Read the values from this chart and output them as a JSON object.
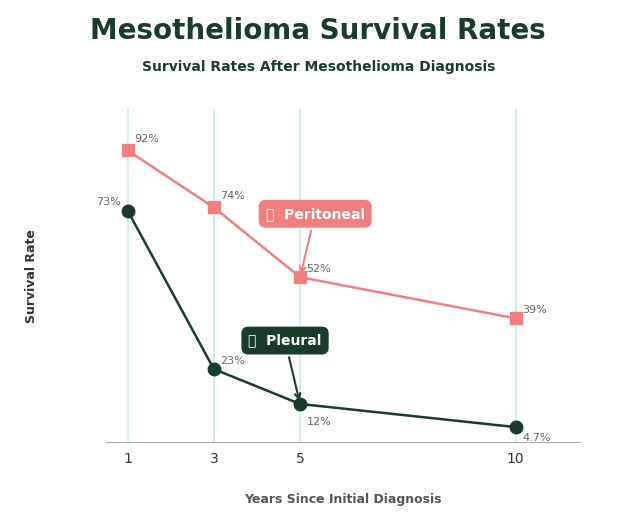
{
  "title": "Mesothelioma Survival Rates",
  "subtitle": "Survival Rates After Mesothelioma Diagnosis",
  "xlabel": "Years Since Initial Diagnosis",
  "ylabel": "Survival Rate",
  "title_bg_color": "#dff2e1",
  "background_color": "#ffffff",
  "peritoneal": {
    "x": [
      1,
      3,
      5,
      10
    ],
    "y": [
      92,
      74,
      52,
      39
    ],
    "labels": [
      "92%",
      "74%",
      "52%",
      "39%"
    ],
    "color": "#f08080",
    "marker": "s",
    "name": "Peritoneal"
  },
  "pleural": {
    "x": [
      1,
      3,
      5,
      10
    ],
    "y": [
      73,
      23,
      12,
      4.7
    ],
    "labels": [
      "73%",
      "23%",
      "12%",
      "4.7%"
    ],
    "color": "#1a3d2b",
    "marker": "o",
    "name": "Pleural"
  },
  "xticks": [
    1,
    3,
    5,
    10
  ],
  "ylim": [
    0,
    105
  ],
  "xlim": [
    0.5,
    11.5
  ],
  "grid_color": "#c8ece8",
  "title_fontsize": 20,
  "subtitle_fontsize": 10,
  "axis_label_fontsize": 9,
  "data_label_fontsize": 8,
  "annotation_fontsize": 10
}
